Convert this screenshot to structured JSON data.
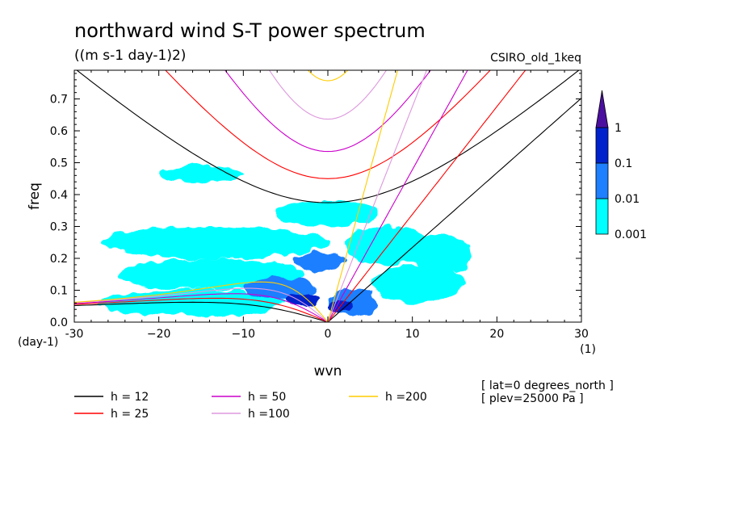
{
  "chart_data": {
    "type": "heatmap",
    "title": "northward wind S-T power spectrum",
    "subtitle": "((m s-1 day-1)2)",
    "dataset": "CSIRO_old_1keq",
    "xlabel": "wvn",
    "ylabel": "freq",
    "x_unit": "(1)",
    "y_unit": "(day-1)",
    "xlim": [
      -30,
      30
    ],
    "ylim": [
      0,
      0.79
    ],
    "x_ticks": [
      -30,
      -20,
      -10,
      0,
      10,
      20,
      30
    ],
    "x_tick_labels": [
      "-30",
      "−20",
      "−10",
      "0",
      "10",
      "20",
      "30"
    ],
    "y_ticks": [
      0,
      0.1,
      0.2,
      0.3,
      0.4,
      0.5,
      0.6,
      0.7
    ],
    "y_tick_labels": [
      "0.0",
      "0.1",
      "0.2",
      "0.3",
      "0.4",
      "0.5",
      "0.6",
      "0.7"
    ],
    "colorbar": {
      "levels": [
        "0.001",
        "0.01",
        "0.1",
        "1"
      ],
      "colors": [
        "#00ffff",
        "#1e7fff",
        "#0022cc",
        "#4b0fa0"
      ]
    },
    "annotations": [
      "[ lat=0 degrees_north ]",
      "[ plev=25000 Pa ]"
    ],
    "series": [
      {
        "name": "h = 12",
        "equivalent_depth": 12,
        "color": "#000000"
      },
      {
        "name": "h = 25",
        "equivalent_depth": 25,
        "color": "#ff0000"
      },
      {
        "name": "h = 50",
        "equivalent_depth": 50,
        "color": "#cc00cc"
      },
      {
        "name": "h =100",
        "equivalent_depth": 100,
        "color": "#dd99dd"
      },
      {
        "name": "h =200",
        "equivalent_depth": 200,
        "color": "#ffcc00"
      }
    ],
    "power_regions": [
      {
        "level": 0,
        "x": [
          -27,
          -5
        ],
        "y": [
          0.02,
          0.1
        ]
      },
      {
        "level": 0,
        "x": [
          -25,
          -3
        ],
        "y": [
          0.1,
          0.2
        ]
      },
      {
        "level": 0,
        "x": [
          -27,
          0
        ],
        "y": [
          0.2,
          0.3
        ]
      },
      {
        "level": 0,
        "x": [
          -6,
          6
        ],
        "y": [
          0.3,
          0.38
        ]
      },
      {
        "level": 0,
        "x": [
          5,
          16
        ],
        "y": [
          0.06,
          0.18
        ]
      },
      {
        "level": 0,
        "x": [
          2,
          12
        ],
        "y": [
          0.18,
          0.3
        ]
      },
      {
        "level": 0,
        "x": [
          10,
          17
        ],
        "y": [
          0.15,
          0.28
        ]
      },
      {
        "level": 0,
        "x": [
          -20,
          -10
        ],
        "y": [
          0.44,
          0.49
        ]
      },
      {
        "level": 1,
        "x": [
          -10,
          -1
        ],
        "y": [
          0.07,
          0.14
        ]
      },
      {
        "level": 1,
        "x": [
          0,
          6
        ],
        "y": [
          0.02,
          0.1
        ]
      },
      {
        "level": 1,
        "x": [
          -4,
          2
        ],
        "y": [
          0.16,
          0.22
        ]
      },
      {
        "level": 2,
        "x": [
          -5,
          -1
        ],
        "y": [
          0.05,
          0.09
        ]
      },
      {
        "level": 2,
        "x": [
          0,
          3
        ],
        "y": [
          0.03,
          0.07
        ]
      }
    ]
  }
}
